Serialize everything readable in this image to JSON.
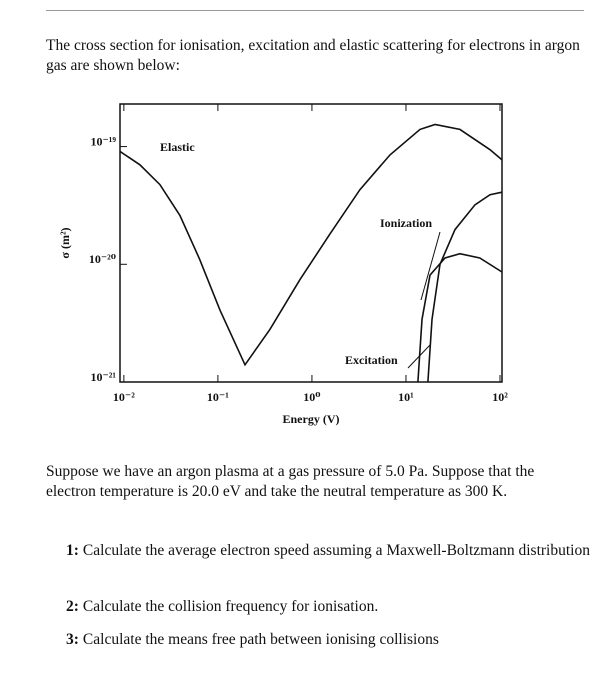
{
  "intro": "The cross section for ionisation, excitation and elastic scattering for electrons in argon gas are shown below:",
  "chart_data": {
    "type": "line",
    "xlabel": "Energy (V)",
    "ylabel": "σ (m²)",
    "x_log": true,
    "y_log": true,
    "xlim": [
      0.0091,
      105
    ],
    "ylim": [
      1e-21,
      2.3e-19
    ],
    "xticks": [
      {
        "value": 0.01,
        "label": "10⁻²"
      },
      {
        "value": 0.1,
        "label": "10⁻¹"
      },
      {
        "value": 1,
        "label": "10⁰"
      },
      {
        "value": 10,
        "label": "10¹"
      },
      {
        "value": 100,
        "label": "10²"
      }
    ],
    "yticks": [
      {
        "value": 1e-21,
        "label": "10⁻²¹"
      },
      {
        "value": 1e-20,
        "label": "10⁻²⁰"
      },
      {
        "value": 1e-19,
        "label": "10⁻¹⁹"
      }
    ],
    "series": [
      {
        "name": "Elastic",
        "color": "#111111",
        "x": [
          0.0091,
          0.0148,
          0.0242,
          0.0394,
          0.064,
          0.105,
          0.194,
          0.357,
          0.745,
          1.55,
          3.24,
          6.76,
          14.1,
          20.4,
          37.5,
          78.3,
          105
        ],
        "values": [
          9.1e-20,
          7e-20,
          4.75e-20,
          2.6e-20,
          1.1e-20,
          4.1e-21,
          1.4e-21,
          2.8e-21,
          7.4e-21,
          1.8e-20,
          4.3e-20,
          8.5e-20,
          1.4e-19,
          1.54e-19,
          1.4e-19,
          9.4e-20,
          7.7e-20
        ]
      },
      {
        "name": "Ionization",
        "color": "#111111",
        "x": [
          17.1,
          18.9,
          23,
          33.2,
          54.2,
          78.3,
          105
        ],
        "values": [
          1e-21,
          3.4e-21,
          1e-20,
          1.97e-20,
          3.2e-20,
          3.9e-20,
          4.1e-20
        ]
      },
      {
        "name": "Excitation",
        "color": "#111111",
        "x": [
          13.4,
          14.8,
          18.0,
          26,
          37.5,
          61,
          105
        ],
        "values": [
          1e-21,
          3.4e-21,
          8.1e-21,
          1.13e-20,
          1.23e-20,
          1.13e-20,
          8.6e-21
        ]
      }
    ]
  },
  "problem": "Suppose we have an argon plasma at a gas pressure of 5.0 Pa. Suppose that the electron temperature is 20.0 eV and take the neutral temperature as 300 K.",
  "questions": [
    {
      "number": "1:",
      "text": "Calculate the average electron speed assuming a Maxwell-Boltzmann distribution"
    },
    {
      "number": "2:",
      "text": "Calculate the collision frequency for ionisation."
    },
    {
      "number": "3:",
      "text": "Calculate the means free path between ionising collisions"
    }
  ]
}
